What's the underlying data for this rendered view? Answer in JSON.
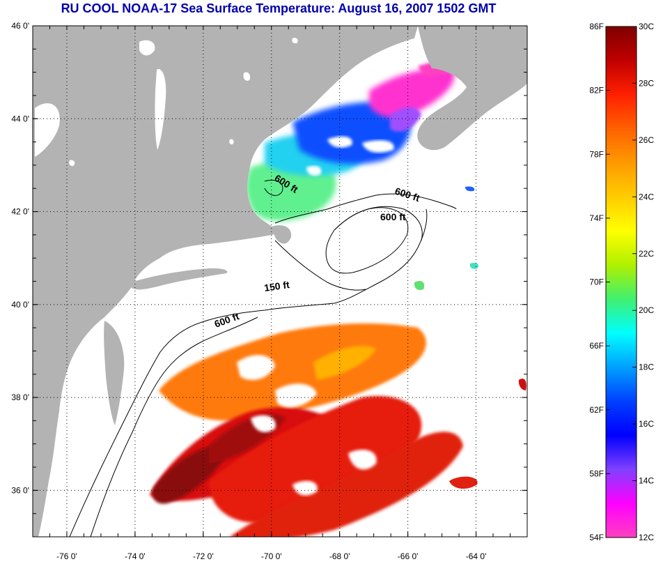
{
  "title": "RU COOL  NOAA-17  Sea Surface Temperature:  August 16, 2007 1502 GMT",
  "colors": {
    "title": "#0000b0",
    "land": "#b3b3b3",
    "ocean_nodata": "#ffffff",
    "contour": "#000000"
  },
  "map": {
    "lon_range": [
      -77,
      -62.5
    ],
    "lat_range": [
      35,
      46
    ],
    "lon_ticks": [
      {
        "value": -76,
        "label": "-76 0'"
      },
      {
        "value": -74,
        "label": "-74 0'"
      },
      {
        "value": -72,
        "label": "-72 0'"
      },
      {
        "value": -70,
        "label": "-70 0'"
      },
      {
        "value": -68,
        "label": "-68 0'"
      },
      {
        "value": -66,
        "label": "-66 0'"
      },
      {
        "value": -64,
        "label": "-64 0'"
      }
    ],
    "lat_ticks": [
      {
        "value": 46,
        "label": "46 0'"
      },
      {
        "value": 44,
        "label": "44 0'"
      },
      {
        "value": 42,
        "label": "42 0'"
      },
      {
        "value": 40,
        "label": "40 0'"
      },
      {
        "value": 38,
        "label": "38 0'"
      },
      {
        "value": 36,
        "label": "36 0'"
      }
    ],
    "grid": "dotted",
    "contour_labels": [
      "600 ft",
      "600 ft",
      "600 ft",
      "150 ft",
      "600 ft"
    ]
  },
  "colorbar": {
    "range_c": [
      12,
      30
    ],
    "range_f": [
      54,
      86
    ],
    "celsius_labels": [
      "30C",
      "28C",
      "26C",
      "24C",
      "22C",
      "20C",
      "18C",
      "16C",
      "14C",
      "12C"
    ],
    "fahrenheit_labels": [
      "86F",
      "82F",
      "78F",
      "74F",
      "70F",
      "66F",
      "62F",
      "58F",
      "54F"
    ],
    "gradient": [
      "#800000",
      "#c00000",
      "#ff2000",
      "#ff6000",
      "#ff9a00",
      "#ffcc00",
      "#ffff00",
      "#b0f000",
      "#40f070",
      "#00ffff",
      "#00a0ff",
      "#0040ff",
      "#0000ff",
      "#8040ff",
      "#ff00ff",
      "#ff40c0"
    ]
  }
}
